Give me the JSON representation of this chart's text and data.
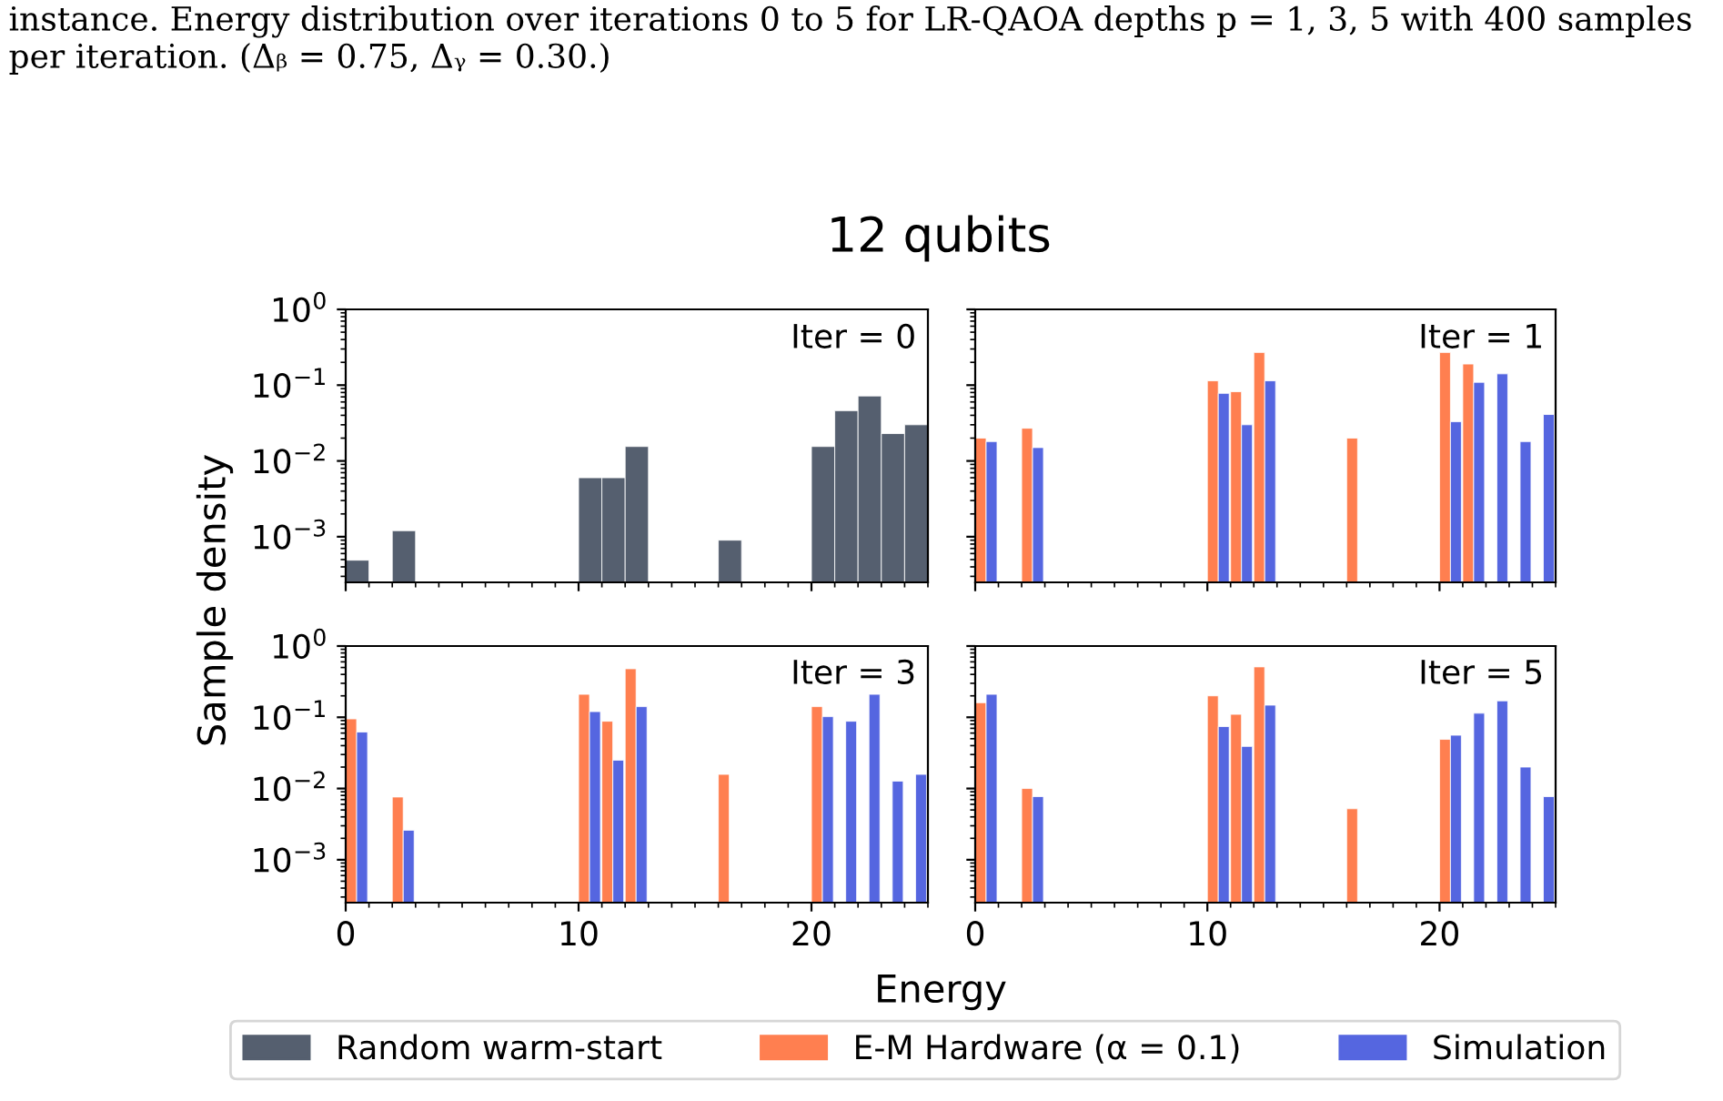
{
  "chart_data": [
    {
      "type": "histogram",
      "title": "12 qubits",
      "ylabel": "Sample density",
      "annotations": [
        "instance. Energy distribution over iterations 0 to 5 for LR-QAOA depths p = 1, 3, 5 with 400 samples per iteration. (Δᵦ = 0.75, Δᵧ = 0.30.)",
        "Iter = 0"
      ],
      "bins": [
        0,
        1,
        2,
        3,
        4,
        5,
        6,
        7,
        8,
        9,
        10,
        11,
        12,
        13,
        14,
        15,
        16,
        17,
        18,
        19,
        20,
        21,
        22,
        23,
        24,
        25
      ],
      "series": [
        {
          "name": "Random warm-start",
          "color": "#555f6f",
          "values": [
            0.00049,
            null,
            0.0012,
            null,
            null,
            null,
            null,
            null,
            null,
            null,
            0.006,
            0.006,
            0.0155,
            null,
            null,
            null,
            0.0009,
            null,
            null,
            null,
            0.0155,
            0.046,
            0.072,
            0.023,
            0.03
          ]
        }
      ],
      "xlim": [
        0,
        25
      ],
      "ylim": [
        0.00025,
        1
      ],
      "xticks": [
        0,
        10,
        20
      ],
      "yticks": [
        {
          "value": 1,
          "label": "10$^{0}$"
        },
        {
          "value": 0.1,
          "label": "10$^{−1}$"
        },
        {
          "value": 0.01,
          "label": "10$^{−2}$"
        },
        {
          "value": 0.001,
          "label": "10$^{−3}$"
        }
      ],
      "log": "y",
      "tick_labels": "y",
      "legend": "bottom"
    },
    {
      "type": "histogram",
      "annotations": [
        "Iter = 1"
      ],
      "bins": [
        0,
        1,
        2,
        3,
        4,
        5,
        6,
        7,
        8,
        9,
        10,
        11,
        12,
        13,
        14,
        15,
        16,
        17,
        18,
        19,
        20,
        21,
        22,
        23,
        24,
        25
      ],
      "series": [
        {
          "name": "E-M Hardware (α = 0.1)",
          "color": "#ff7f50",
          "values": [
            0.02,
            null,
            0.027,
            null,
            null,
            null,
            null,
            null,
            null,
            null,
            0.114,
            0.082,
            0.27,
            null,
            null,
            null,
            0.02,
            null,
            null,
            null,
            0.27,
            0.19,
            null,
            null,
            null
          ]
        },
        {
          "name": "Simulation",
          "color": "#5566e0",
          "values": [
            0.018,
            null,
            0.015,
            null,
            null,
            null,
            null,
            null,
            null,
            null,
            0.078,
            0.03,
            0.114,
            null,
            null,
            null,
            null,
            null,
            null,
            null,
            0.033,
            0.109,
            0.141,
            0.018,
            0.041
          ]
        }
      ],
      "xlim": [
        0,
        25
      ],
      "ylim": [
        0.00025,
        1
      ],
      "xticks": [
        0,
        10,
        20
      ],
      "yticks": [
        {
          "value": 1,
          "label": "10$^{0}$"
        },
        {
          "value": 0.1,
          "label": "10$^{−1}$"
        },
        {
          "value": 0.01,
          "label": "10$^{−2}$"
        },
        {
          "value": 0.001,
          "label": "10$^{−3}$"
        }
      ],
      "log": "y",
      "tick_labels": false,
      "legend": "bottom"
    },
    {
      "type": "histogram",
      "xlabel": "Energy",
      "annotations": [
        "Iter = 3"
      ],
      "bins": [
        0,
        1,
        2,
        3,
        4,
        5,
        6,
        7,
        8,
        9,
        10,
        11,
        12,
        13,
        14,
        15,
        16,
        17,
        18,
        19,
        20,
        21,
        22,
        23,
        24,
        25
      ],
      "series": [
        {
          "name": "E-M Hardware (α = 0.1)",
          "color": "#ff7f50",
          "values": [
            0.095,
            null,
            0.0076,
            null,
            null,
            null,
            null,
            null,
            null,
            null,
            0.21,
            0.088,
            0.48,
            null,
            null,
            null,
            0.0158,
            null,
            null,
            null,
            0.141,
            null,
            null,
            null,
            null
          ]
        },
        {
          "name": "Simulation",
          "color": "#5566e0",
          "values": [
            0.062,
            null,
            0.0026,
            null,
            null,
            null,
            null,
            null,
            null,
            null,
            0.12,
            0.025,
            0.141,
            null,
            null,
            null,
            null,
            null,
            null,
            null,
            0.102,
            0.088,
            0.21,
            0.0127,
            0.0158
          ]
        }
      ],
      "xlim": [
        0,
        25
      ],
      "ylim": [
        0.00025,
        1
      ],
      "xticks": [
        0,
        10,
        20
      ],
      "yticks": [
        {
          "value": 1,
          "label": "10$^{0}$"
        },
        {
          "value": 0.1,
          "label": "10$^{−1}$"
        },
        {
          "value": 0.01,
          "label": "10$^{−2}$"
        },
        {
          "value": 0.001,
          "label": "10$^{−3}$"
        }
      ],
      "log": "y",
      "legend": "bottom"
    },
    {
      "type": "histogram",
      "annotations": [
        "Iter = 5"
      ],
      "bins": [
        0,
        1,
        2,
        3,
        4,
        5,
        6,
        7,
        8,
        9,
        10,
        11,
        12,
        13,
        14,
        15,
        16,
        17,
        18,
        19,
        20,
        21,
        22,
        23,
        24,
        25
      ],
      "series": [
        {
          "name": "E-M Hardware (α = 0.1)",
          "color": "#ff7f50",
          "values": [
            0.16,
            null,
            0.01,
            null,
            null,
            null,
            null,
            null,
            null,
            null,
            0.2,
            0.11,
            0.51,
            null,
            null,
            null,
            0.0052,
            null,
            null,
            null,
            0.049,
            null,
            null,
            null,
            null
          ]
        },
        {
          "name": "Simulation",
          "color": "#5566e0",
          "values": [
            0.21,
            null,
            0.0077,
            null,
            null,
            null,
            null,
            null,
            null,
            null,
            0.074,
            0.039,
            0.148,
            null,
            null,
            null,
            null,
            null,
            null,
            null,
            0.056,
            0.114,
            0.17,
            0.02,
            0.0077
          ]
        }
      ],
      "xlim": [
        0,
        25
      ],
      "ylim": [
        0.00025,
        1
      ],
      "xticks": [
        0,
        10,
        20
      ],
      "yticks": [
        {
          "value": 1,
          "label": "10$^{0}$"
        },
        {
          "value": 0.1,
          "label": "10$^{−1}$"
        },
        {
          "value": 0.01,
          "label": "10$^{−2}$"
        },
        {
          "value": 0.001,
          "label": "10$^{−3}$"
        }
      ],
      "log": "y",
      "tick_labels": "x",
      "legend": "bottom"
    }
  ]
}
